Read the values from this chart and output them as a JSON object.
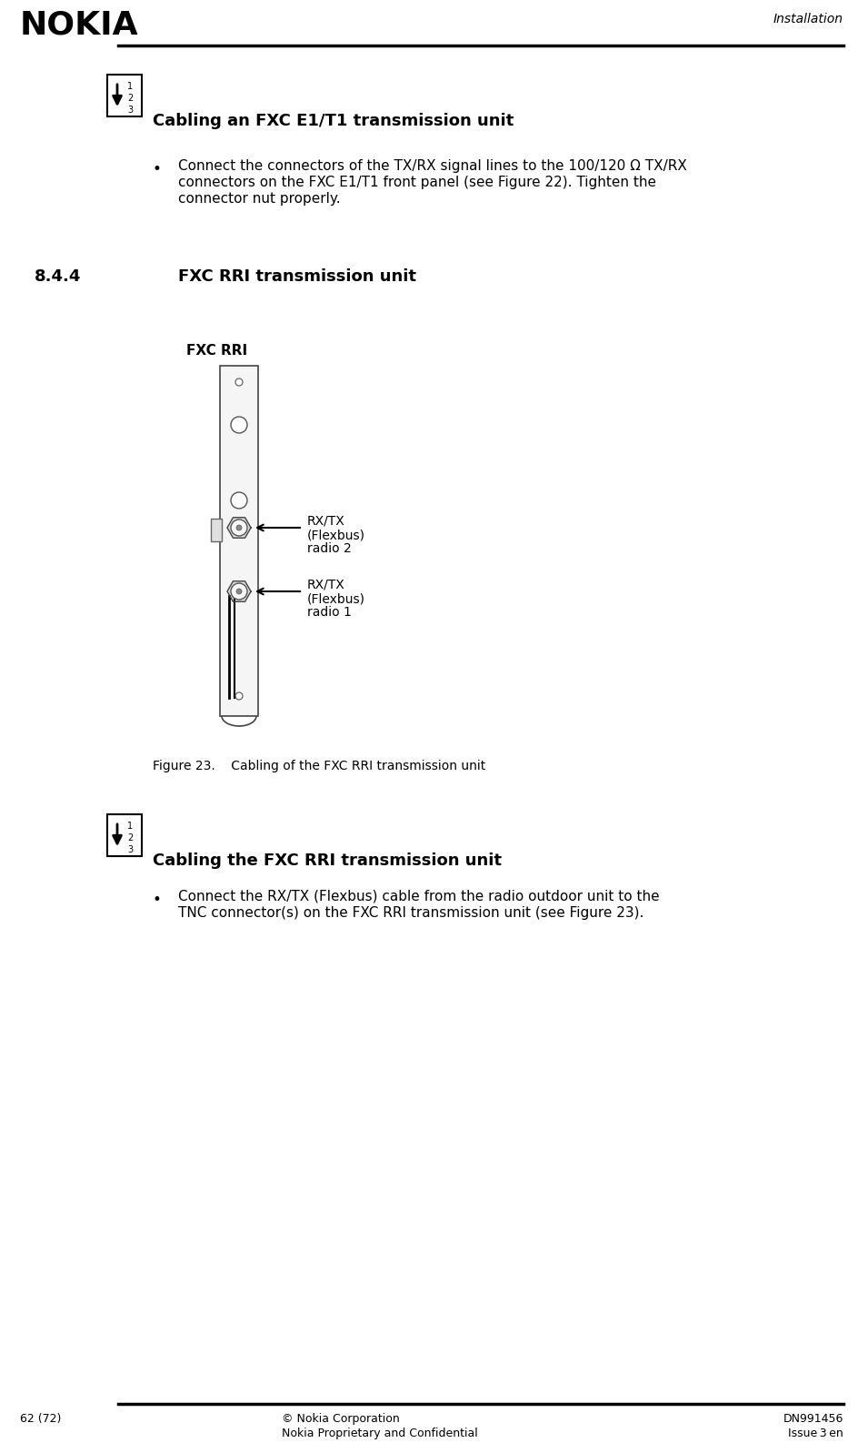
{
  "bg_color": "#ffffff",
  "nokia_logo": "NOKIA",
  "header_right": "Installation",
  "footer_left": "62 (72)",
  "footer_center1": "© Nokia Corporation",
  "footer_center2": "Nokia Proprietary and Confidential",
  "footer_right1": "DN991456",
  "footer_right2": "Issue 3 en",
  "section_num": "8.4.4",
  "section_title": "FXC RRI transmission unit",
  "heading1": "Cabling an FXC E1/T1 transmission unit",
  "bullet1_line1": "Connect the connectors of the TX/RX signal lines to the 100/120 Ω TX/RX",
  "bullet1_line2": "connectors on the FXC E1/T1 front panel (see Figure 22). Tighten the",
  "bullet1_line3": "connector nut properly.",
  "fig_label": "FXC RRI",
  "fig_caption": "Figure 23.    Cabling of the FXC RRI transmission unit",
  "label_radio2_line1": "RX/TX",
  "label_radio2_line2": "(Flexbus)",
  "label_radio2_line3": "radio 2",
  "label_radio1_line1": "RX/TX",
  "label_radio1_line2": "(Flexbus)",
  "label_radio1_line3": "radio 1",
  "heading2": "Cabling the FXC RRI transmission unit",
  "bullet2_line1": "Connect the RX/TX (Flexbus) cable from the radio outdoor unit to the",
  "bullet2_line2": "TNC connector(s) on the FXC RRI transmission unit (see Figure 23)."
}
